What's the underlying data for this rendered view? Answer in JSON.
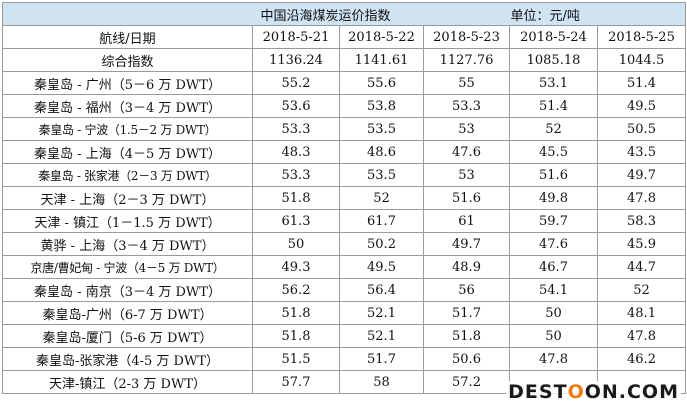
{
  "title": "中国沿海煤炭运价指数",
  "unit": "单位：元/吨",
  "header": {
    "label": "航线/日期",
    "dates": [
      "2018-5-21",
      "2018-5-22",
      "2018-5-23",
      "2018-5-24",
      "2018-5-25"
    ]
  },
  "index_row": {
    "label": "综合指数",
    "values": [
      "1136.24",
      "1141.61",
      "1127.76",
      "1085.18",
      "1044.5"
    ]
  },
  "rows": [
    {
      "route": "秦皇岛 - 广州（5－6 万 DWT）",
      "values": [
        "55.2",
        "55.6",
        "55",
        "53.1",
        "51.4"
      ]
    },
    {
      "route": "秦皇岛 - 福州（3－4 万 DWT）",
      "values": [
        "53.6",
        "53.8",
        "53.3",
        "51.4",
        "49.5"
      ]
    },
    {
      "route": "秦皇岛 - 宁波（1.5－2 万 DWT）",
      "values": [
        "53.3",
        "53.5",
        "53",
        "52",
        "50.5"
      ]
    },
    {
      "route": "秦皇岛 - 上海（4－5 万 DWT）",
      "values": [
        "48.3",
        "48.6",
        "47.6",
        "45.5",
        "43.5"
      ]
    },
    {
      "route": "秦皇岛 - 张家港（2－3 万 DWT）",
      "values": [
        "53.3",
        "53.5",
        "53",
        "51.6",
        "49.7"
      ]
    },
    {
      "route": "天津 - 上海（2－3 万 DWT）",
      "values": [
        "51.8",
        "52",
        "51.6",
        "49.8",
        "47.8"
      ]
    },
    {
      "route": "天津 - 镇江（1－1.5 万 DWT）",
      "values": [
        "61.3",
        "61.7",
        "61",
        "59.7",
        "58.3"
      ]
    },
    {
      "route": "黄骅 - 上海（3－4 万 DWT）",
      "values": [
        "50",
        "50.2",
        "49.7",
        "47.6",
        "45.9"
      ]
    },
    {
      "route": "京唐/曹妃甸 - 宁波（4－5 万 DWT）",
      "values": [
        "49.3",
        "49.5",
        "48.9",
        "46.7",
        "44.7"
      ]
    },
    {
      "route": "秦皇岛 - 南京（3－4 万 DWT）",
      "values": [
        "56.2",
        "56.4",
        "56",
        "54.1",
        "52"
      ]
    },
    {
      "route": "秦皇岛-广州（6-7 万 DWT）",
      "values": [
        "51.8",
        "52.1",
        "51.7",
        "50",
        "48.1"
      ]
    },
    {
      "route": "秦皇岛-厦门（5-6 万 DWT）",
      "values": [
        "51.8",
        "52.1",
        "51.8",
        "50",
        "47.8"
      ]
    },
    {
      "route": "秦皇岛-张家港（4-5 万 DWT）",
      "values": [
        "51.5",
        "51.7",
        "50.6",
        "47.8",
        "46.2"
      ]
    },
    {
      "route": "天津-镇江（2-3 万 DWT）",
      "values": [
        "57.7",
        "58",
        "57.2",
        "",
        ""
      ]
    }
  ],
  "watermark": {
    "part1": "DEST",
    "part2": "O",
    "part3": "ON.COM"
  }
}
